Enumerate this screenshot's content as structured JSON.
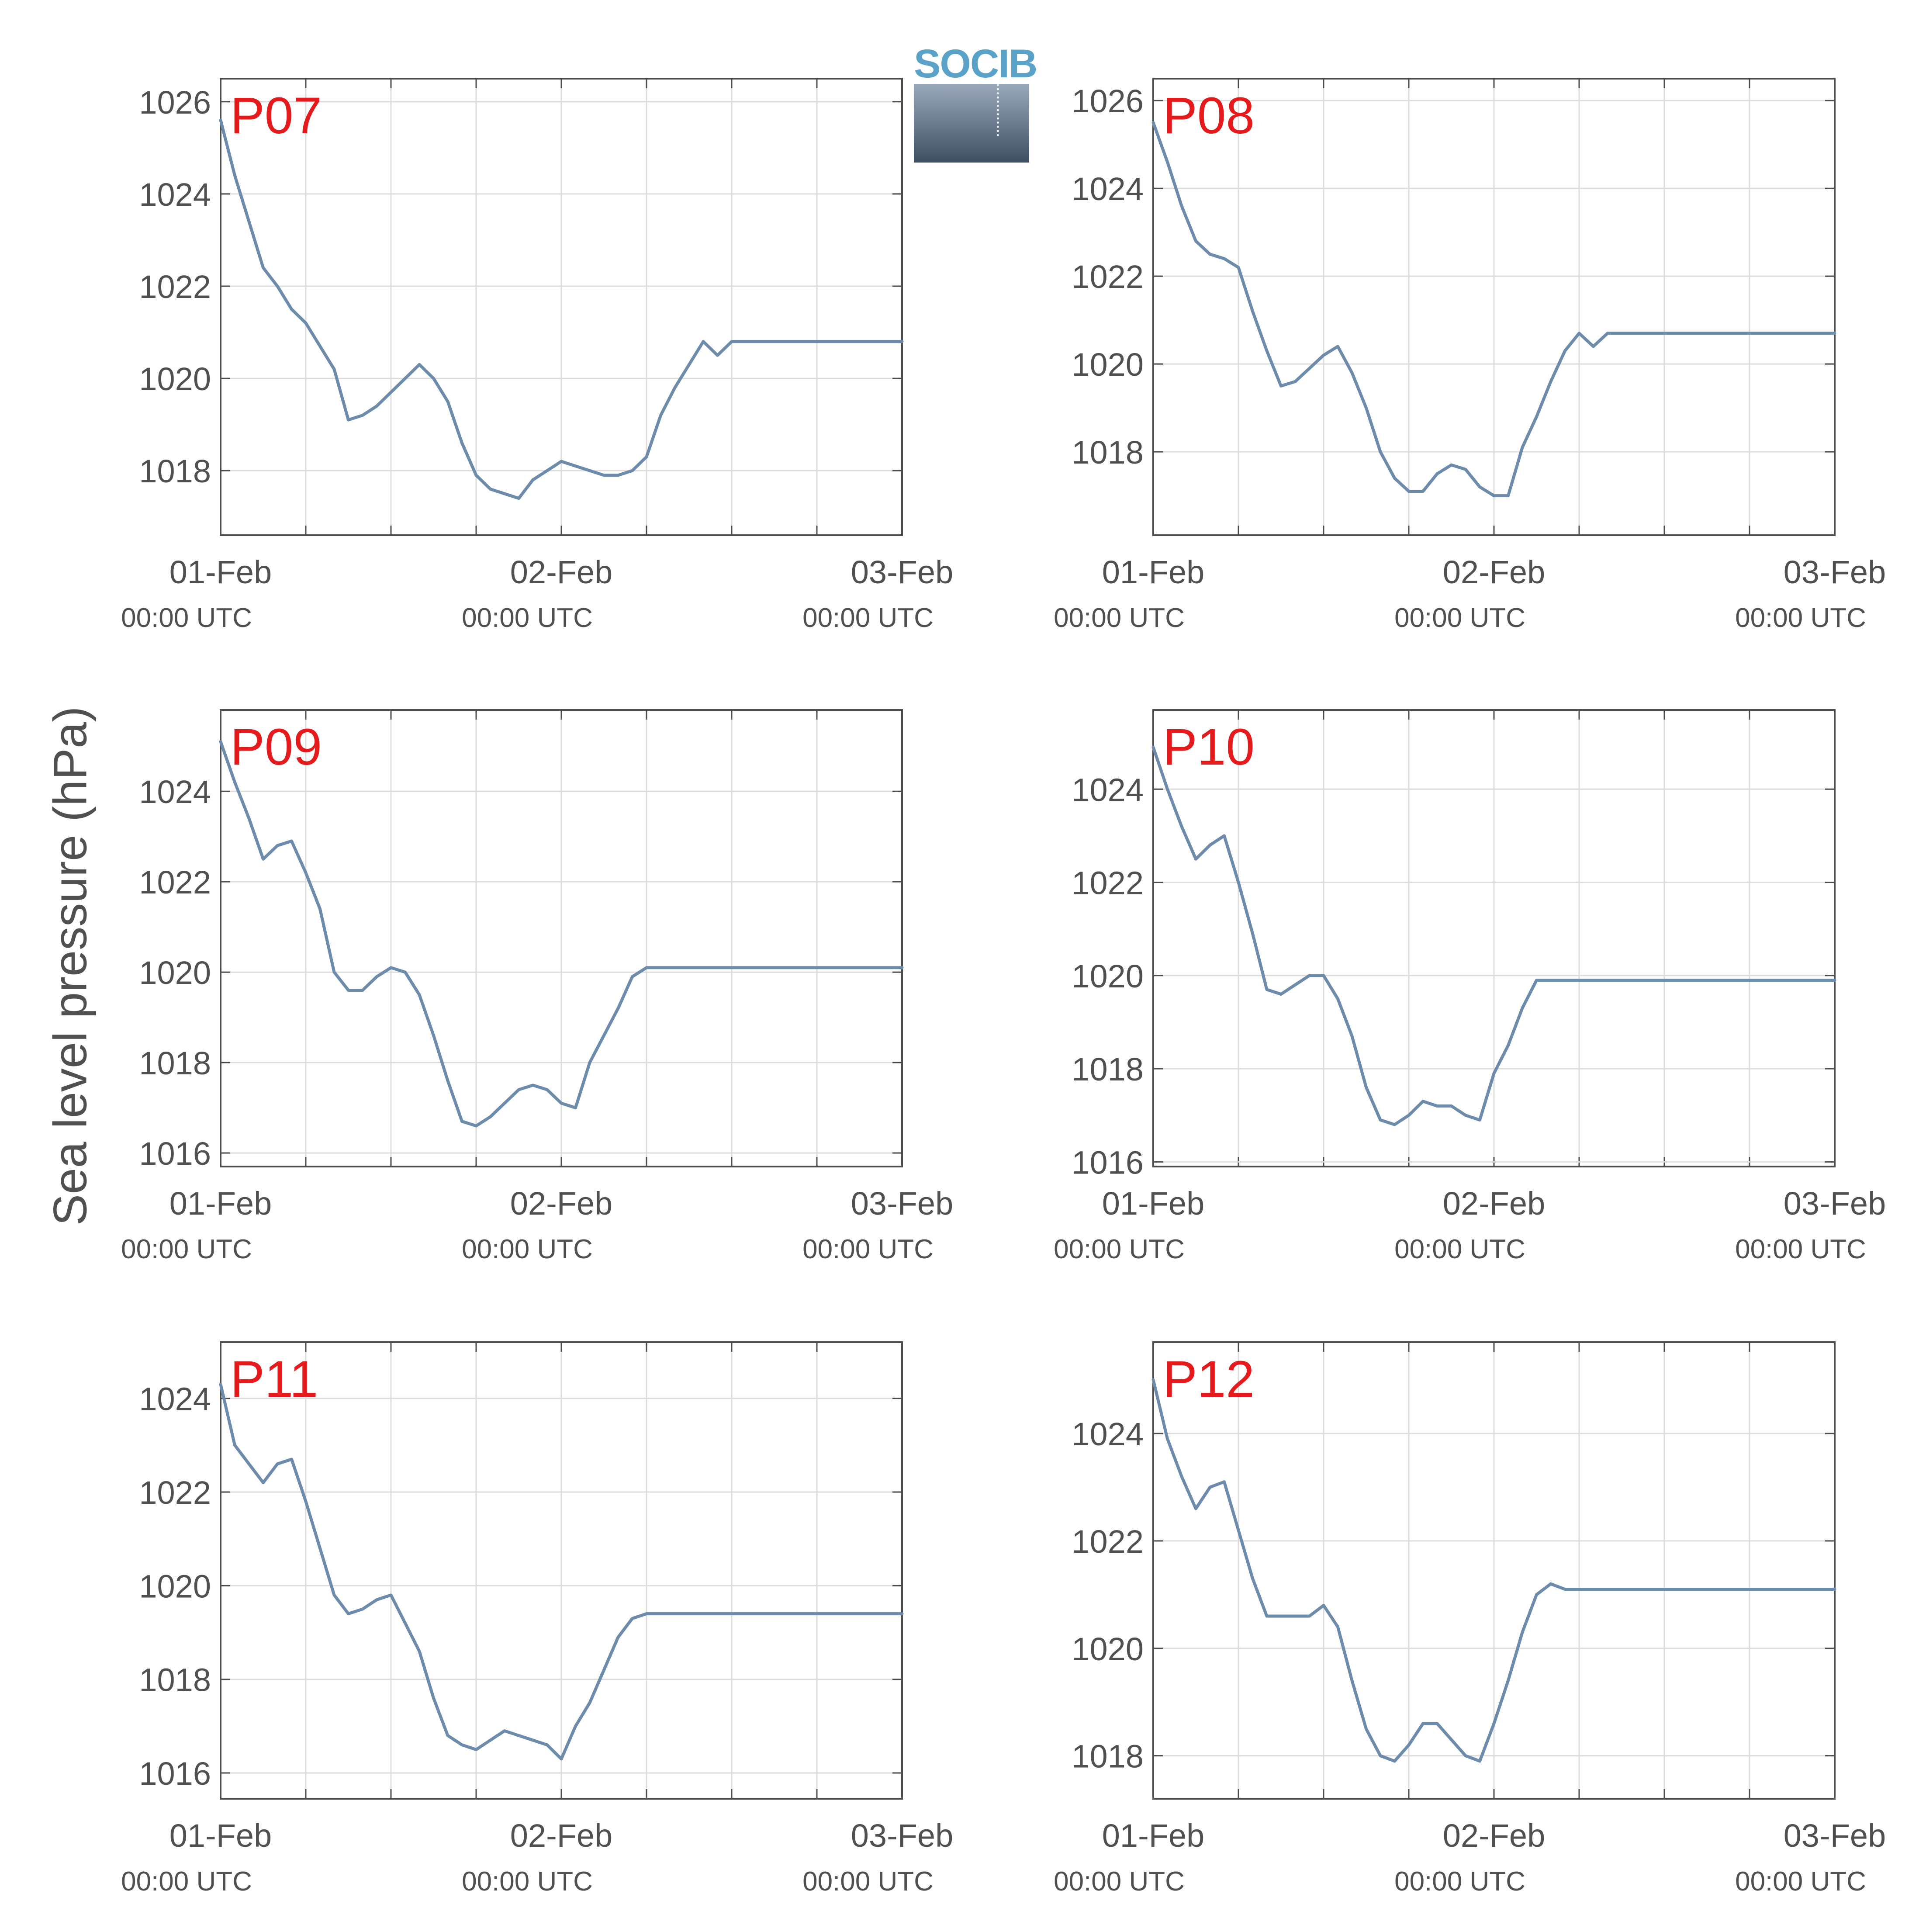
{
  "figure": {
    "ylabel": "Sea level pressure (hPa)",
    "logo_text": "SOCIB",
    "colors": {
      "line": "#6d8bab",
      "panel_label": "#e41a1c",
      "axis": "#4d4d4d",
      "grid": "#dcdcdc",
      "text": "#505050"
    }
  },
  "chart_data": [
    {
      "type": "line",
      "label": "P07",
      "x_ticks": [
        {
          "date": "01-Feb",
          "time": "00:00 UTC"
        },
        {
          "date": "02-Feb",
          "time": "00:00 UTC"
        },
        {
          "date": "03-Feb",
          "time": "00:00 UTC"
        }
      ],
      "xlim_hours": [
        0,
        48
      ],
      "y_ticks": [
        1018,
        1020,
        1022,
        1024,
        1026
      ],
      "ylim": [
        1016.6,
        1026.5
      ],
      "grid": true,
      "series": [
        {
          "x": [
            0,
            1,
            2,
            3,
            4,
            5,
            6,
            7,
            8,
            9,
            10,
            11,
            12,
            13,
            14,
            15,
            16,
            17,
            18,
            19,
            20,
            21,
            22,
            23,
            24,
            25,
            26,
            27,
            28,
            29,
            30,
            31,
            32,
            33,
            34,
            35,
            36,
            37,
            38,
            39,
            40,
            41,
            42,
            43,
            44,
            45,
            46,
            47,
            48
          ],
          "y": [
            1025.6,
            1024.4,
            1023.4,
            1022.4,
            1022.0,
            1021.5,
            1021.2,
            1020.7,
            1020.2,
            1019.1,
            1019.2,
            1019.4,
            1019.7,
            1020.0,
            1020.3,
            1020.0,
            1019.5,
            1018.6,
            1017.9,
            1017.6,
            1017.5,
            1017.4,
            1017.8,
            1018.0,
            1018.2,
            1018.1,
            1018.0,
            1017.9,
            1017.9,
            1018.0,
            1018.3,
            1019.2,
            1019.8,
            1020.3,
            1020.8,
            1020.5,
            1020.8,
            1020.8,
            1020.8,
            1020.8,
            1020.8,
            1020.8,
            1020.8,
            1020.8,
            1020.8,
            1020.8,
            1020.8,
            1020.8,
            1020.8
          ]
        }
      ]
    },
    {
      "type": "line",
      "label": "P08",
      "x_ticks": [
        {
          "date": "01-Feb",
          "time": "00:00 UTC"
        },
        {
          "date": "02-Feb",
          "time": "00:00 UTC"
        },
        {
          "date": "03-Feb",
          "time": "00:00 UTC"
        }
      ],
      "xlim_hours": [
        0,
        48
      ],
      "y_ticks": [
        1018,
        1020,
        1022,
        1024,
        1026
      ],
      "ylim": [
        1016.1,
        1026.5
      ],
      "grid": true,
      "series": [
        {
          "x": [
            0,
            1,
            2,
            3,
            4,
            5,
            6,
            7,
            8,
            9,
            10,
            11,
            12,
            13,
            14,
            15,
            16,
            17,
            18,
            19,
            20,
            21,
            22,
            23,
            24,
            25,
            26,
            27,
            28,
            29,
            30,
            31,
            32,
            33,
            34,
            35,
            36,
            37,
            38,
            39,
            40,
            41,
            42,
            43,
            44,
            45,
            46,
            47,
            48
          ],
          "y": [
            1025.5,
            1024.6,
            1023.6,
            1022.8,
            1022.5,
            1022.4,
            1022.2,
            1021.2,
            1020.3,
            1019.5,
            1019.6,
            1019.9,
            1020.2,
            1020.4,
            1019.8,
            1019.0,
            1018.0,
            1017.4,
            1017.1,
            1017.1,
            1017.5,
            1017.7,
            1017.6,
            1017.2,
            1017.0,
            1017.0,
            1018.1,
            1018.8,
            1019.6,
            1020.3,
            1020.7,
            1020.4,
            1020.7,
            1020.7,
            1020.7,
            1020.7,
            1020.7,
            1020.7,
            1020.7,
            1020.7,
            1020.7,
            1020.7,
            1020.7,
            1020.7,
            1020.7,
            1020.7,
            1020.7,
            1020.7,
            1020.7
          ]
        }
      ]
    },
    {
      "type": "line",
      "label": "P09",
      "x_ticks": [
        {
          "date": "01-Feb",
          "time": "00:00 UTC"
        },
        {
          "date": "02-Feb",
          "time": "00:00 UTC"
        },
        {
          "date": "03-Feb",
          "time": "00:00 UTC"
        }
      ],
      "xlim_hours": [
        0,
        48
      ],
      "y_ticks": [
        1016,
        1018,
        1020,
        1022,
        1024
      ],
      "ylim": [
        1015.7,
        1025.8
      ],
      "grid": true,
      "series": [
        {
          "x": [
            0,
            1,
            2,
            3,
            4,
            5,
            6,
            7,
            8,
            9,
            10,
            11,
            12,
            13,
            14,
            15,
            16,
            17,
            18,
            19,
            20,
            21,
            22,
            23,
            24,
            25,
            26,
            27,
            28,
            29,
            30,
            31,
            32,
            33,
            34,
            35,
            36,
            37,
            38,
            39,
            40,
            41,
            42,
            43,
            44,
            45,
            46,
            47,
            48
          ],
          "y": [
            1025.1,
            1024.2,
            1023.4,
            1022.5,
            1022.8,
            1022.9,
            1022.2,
            1021.4,
            1020.0,
            1019.6,
            1019.6,
            1019.9,
            1020.1,
            1020.0,
            1019.5,
            1018.6,
            1017.6,
            1016.7,
            1016.6,
            1016.8,
            1017.1,
            1017.4,
            1017.5,
            1017.4,
            1017.1,
            1017.0,
            1018.0,
            1018.6,
            1019.2,
            1019.9,
            1020.1,
            1020.1,
            1020.1,
            1020.1,
            1020.1,
            1020.1,
            1020.1,
            1020.1,
            1020.1,
            1020.1,
            1020.1,
            1020.1,
            1020.1,
            1020.1,
            1020.1,
            1020.1,
            1020.1,
            1020.1,
            1020.1
          ]
        }
      ]
    },
    {
      "type": "line",
      "label": "P10",
      "x_ticks": [
        {
          "date": "01-Feb",
          "time": "00:00 UTC"
        },
        {
          "date": "02-Feb",
          "time": "00:00 UTC"
        },
        {
          "date": "03-Feb",
          "time": "00:00 UTC"
        }
      ],
      "xlim_hours": [
        0,
        48
      ],
      "y_ticks": [
        1016,
        1018,
        1020,
        1022,
        1024
      ],
      "ylim": [
        1015.9,
        1025.7
      ],
      "grid": true,
      "series": [
        {
          "x": [
            0,
            1,
            2,
            3,
            4,
            5,
            6,
            7,
            8,
            9,
            10,
            11,
            12,
            13,
            14,
            15,
            16,
            17,
            18,
            19,
            20,
            21,
            22,
            23,
            24,
            25,
            26,
            27,
            28,
            29,
            30,
            31,
            32,
            33,
            34,
            35,
            36,
            37,
            38,
            39,
            40,
            41,
            42,
            43,
            44,
            45,
            46,
            47,
            48
          ],
          "y": [
            1024.9,
            1024.0,
            1023.2,
            1022.5,
            1022.8,
            1023.0,
            1022.0,
            1020.9,
            1019.7,
            1019.6,
            1019.8,
            1020.0,
            1020.0,
            1019.5,
            1018.7,
            1017.6,
            1016.9,
            1016.8,
            1017.0,
            1017.3,
            1017.2,
            1017.2,
            1017.0,
            1016.9,
            1017.9,
            1018.5,
            1019.3,
            1019.9,
            1019.9,
            1019.9,
            1019.9,
            1019.9,
            1019.9,
            1019.9,
            1019.9,
            1019.9,
            1019.9,
            1019.9,
            1019.9,
            1019.9,
            1019.9,
            1019.9,
            1019.9,
            1019.9,
            1019.9,
            1019.9,
            1019.9,
            1019.9,
            1019.9
          ]
        }
      ]
    },
    {
      "type": "line",
      "label": "P11",
      "x_ticks": [
        {
          "date": "01-Feb",
          "time": "00:00 UTC"
        },
        {
          "date": "02-Feb",
          "time": "00:00 UTC"
        },
        {
          "date": "03-Feb",
          "time": "00:00 UTC"
        }
      ],
      "xlim_hours": [
        0,
        48
      ],
      "y_ticks": [
        1016,
        1018,
        1020,
        1022,
        1024
      ],
      "ylim": [
        1015.45,
        1025.2
      ],
      "grid": true,
      "series": [
        {
          "x": [
            0,
            1,
            2,
            3,
            4,
            5,
            6,
            7,
            8,
            9,
            10,
            11,
            12,
            13,
            14,
            15,
            16,
            17,
            18,
            19,
            20,
            21,
            22,
            23,
            24,
            25,
            26,
            27,
            28,
            29,
            30,
            31,
            32,
            33,
            34,
            35,
            36,
            37,
            38,
            39,
            40,
            41,
            42,
            43,
            44,
            45,
            46,
            47,
            48
          ],
          "y": [
            1024.3,
            1023.0,
            1022.6,
            1022.2,
            1022.6,
            1022.7,
            1021.8,
            1020.8,
            1019.8,
            1019.4,
            1019.5,
            1019.7,
            1019.8,
            1019.2,
            1018.6,
            1017.6,
            1016.8,
            1016.6,
            1016.5,
            1016.7,
            1016.9,
            1016.8,
            1016.7,
            1016.6,
            1016.3,
            1017.0,
            1017.5,
            1018.2,
            1018.9,
            1019.3,
            1019.4,
            1019.4,
            1019.4,
            1019.4,
            1019.4,
            1019.4,
            1019.4,
            1019.4,
            1019.4,
            1019.4,
            1019.4,
            1019.4,
            1019.4,
            1019.4,
            1019.4,
            1019.4,
            1019.4,
            1019.4,
            1019.4
          ]
        }
      ]
    },
    {
      "type": "line",
      "label": "P12",
      "x_ticks": [
        {
          "date": "01-Feb",
          "time": "00:00 UTC"
        },
        {
          "date": "02-Feb",
          "time": "00:00 UTC"
        },
        {
          "date": "03-Feb",
          "time": "00:00 UTC"
        }
      ],
      "xlim_hours": [
        0,
        48
      ],
      "y_ticks": [
        1018,
        1020,
        1022,
        1024
      ],
      "ylim": [
        1017.2,
        1025.7
      ],
      "grid": true,
      "series": [
        {
          "x": [
            0,
            1,
            2,
            3,
            4,
            5,
            6,
            7,
            8,
            9,
            10,
            11,
            12,
            13,
            14,
            15,
            16,
            17,
            18,
            19,
            20,
            21,
            22,
            23,
            24,
            25,
            26,
            27,
            28,
            29,
            30,
            31,
            32,
            33,
            34,
            35,
            36,
            37,
            38,
            39,
            40,
            41,
            42,
            43,
            44,
            45,
            46,
            47,
            48
          ],
          "y": [
            1025.0,
            1023.9,
            1023.2,
            1022.6,
            1023.0,
            1023.1,
            1022.2,
            1021.3,
            1020.6,
            1020.6,
            1020.6,
            1020.6,
            1020.8,
            1020.4,
            1019.4,
            1018.5,
            1018.0,
            1017.9,
            1018.2,
            1018.6,
            1018.6,
            1018.3,
            1018.0,
            1017.9,
            1018.6,
            1019.4,
            1020.3,
            1021.0,
            1021.2,
            1021.1,
            1021.1,
            1021.1,
            1021.1,
            1021.1,
            1021.1,
            1021.1,
            1021.1,
            1021.1,
            1021.1,
            1021.1,
            1021.1,
            1021.1,
            1021.1,
            1021.1,
            1021.1,
            1021.1,
            1021.1,
            1021.1,
            1021.1
          ]
        }
      ]
    }
  ]
}
